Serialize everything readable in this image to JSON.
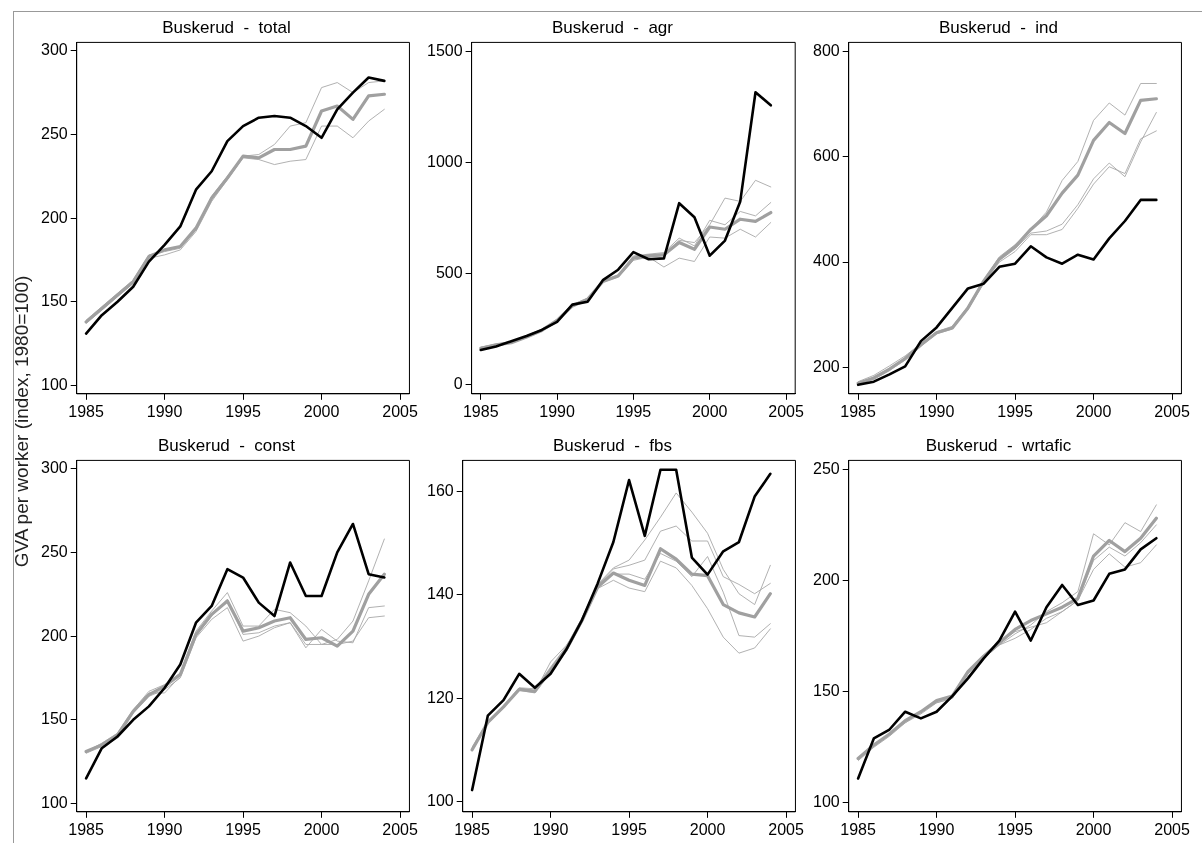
{
  "chart_data": [
    {
      "type": "line",
      "title": "Buskerud  -  total",
      "ylabel": "GVA per worker (index, 1980=100)",
      "x": [
        1985,
        1986,
        1987,
        1988,
        1989,
        1990,
        1991,
        1992,
        1993,
        1994,
        1995,
        1996,
        1997,
        1998,
        1999,
        2000,
        2001,
        2002,
        2003,
        2004
      ],
      "xlim": [
        1984.4,
        2005.6
      ],
      "xticks": [
        1985,
        1990,
        1995,
        2000,
        2005
      ],
      "ylim": [
        95,
        305
      ],
      "yticks": [
        100,
        150,
        200,
        250,
        300
      ],
      "grid": false,
      "legend": false,
      "series": [
        {
          "color": "#000000",
          "values": [
            131,
            142,
            150,
            159,
            174,
            184,
            195,
            217,
            228,
            246,
            255,
            260,
            261,
            260,
            255,
            248,
            265,
            275,
            284,
            282
          ]
        },
        {
          "color": "#a0a0a0",
          "values": [
            138,
            146,
            154,
            162,
            177,
            181,
            183,
            194,
            212,
            224,
            237,
            236,
            241,
            241,
            243,
            264,
            267,
            259,
            273,
            274
          ]
        },
        {
          "color": "#a8a8a8",
          "values": [
            139,
            147,
            155,
            163,
            178,
            180,
            182,
            193,
            213,
            225,
            237,
            238,
            244,
            255,
            257,
            278,
            281,
            275,
            281,
            282
          ]
        },
        {
          "color": "#a8a8a8",
          "values": [
            137,
            145,
            153,
            161,
            176,
            178,
            181,
            192,
            210,
            223,
            236,
            235,
            232,
            234,
            235,
            255,
            255,
            248,
            258,
            265
          ]
        }
      ]
    },
    {
      "type": "line",
      "title": "Buskerud  -  agr",
      "x": [
        1985,
        1986,
        1987,
        1988,
        1989,
        1990,
        1991,
        1992,
        1993,
        1994,
        1995,
        1996,
        1997,
        1998,
        1999,
        2000,
        2001,
        2002,
        2003,
        2004
      ],
      "xlim": [
        1984.4,
        2005.6
      ],
      "xticks": [
        1985,
        1990,
        1995,
        2000,
        2005
      ],
      "ylim": [
        -40,
        1540
      ],
      "yticks": [
        0,
        500,
        1000,
        1500
      ],
      "grid": false,
      "legend": false,
      "series": [
        {
          "color": "#000000",
          "values": [
            157,
            173,
            196,
            220,
            247,
            283,
            361,
            374,
            471,
            518,
            597,
            565,
            569,
            817,
            754,
            581,
            649,
            825,
            1316,
            1257
          ]
        },
        {
          "color": "#a0a0a0",
          "values": [
            165,
            180,
            190,
            215,
            245,
            290,
            355,
            385,
            465,
            490,
            570,
            580,
            585,
            640,
            610,
            710,
            700,
            745,
            735,
            775
          ]
        },
        {
          "color": "#a8a8a8",
          "values": [
            170,
            182,
            195,
            218,
            248,
            295,
            360,
            390,
            470,
            495,
            575,
            585,
            590,
            650,
            640,
            720,
            840,
            825,
            920,
            890
          ]
        },
        {
          "color": "#a8a8a8",
          "values": [
            162,
            178,
            188,
            212,
            242,
            288,
            352,
            382,
            462,
            485,
            560,
            575,
            530,
            570,
            555,
            665,
            660,
            700,
            665,
            730
          ]
        },
        {
          "color": "#a8a8a8",
          "values": [
            168,
            184,
            192,
            217,
            250,
            292,
            358,
            388,
            468,
            492,
            580,
            588,
            595,
            660,
            625,
            740,
            720,
            780,
            760,
            820
          ]
        }
      ]
    },
    {
      "type": "line",
      "title": "Buskerud  -  ind",
      "x": [
        1985,
        1986,
        1987,
        1988,
        1989,
        1990,
        1991,
        1992,
        1993,
        1994,
        1995,
        1996,
        1997,
        1998,
        1999,
        2000,
        2001,
        2002,
        2003,
        2004
      ],
      "xlim": [
        1984.4,
        2005.6
      ],
      "xticks": [
        1985,
        1990,
        1995,
        2000,
        2005
      ],
      "ylim": [
        150,
        817
      ],
      "yticks": [
        200,
        400,
        600,
        800
      ],
      "grid": false,
      "legend": false,
      "series": [
        {
          "color": "#000000",
          "values": [
            167,
            173,
            187,
            202,
            250,
            276,
            313,
            350,
            359,
            391,
            397,
            430,
            409,
            397,
            414,
            405,
            445,
            478,
            518,
            518
          ]
        },
        {
          "color": "#a0a0a0",
          "values": [
            170,
            180,
            197,
            217,
            243,
            266,
            275,
            313,
            364,
            406,
            429,
            462,
            488,
            531,
            565,
            631,
            665,
            644,
            707,
            710
          ]
        },
        {
          "color": "#a8a8a8",
          "values": [
            173,
            185,
            203,
            222,
            245,
            268,
            278,
            316,
            366,
            410,
            433,
            462,
            495,
            555,
            591,
            669,
            702,
            679,
            739,
            739
          ]
        },
        {
          "color": "#a8a8a8",
          "values": [
            168,
            178,
            194,
            214,
            240,
            264,
            273,
            310,
            360,
            400,
            420,
            452,
            452,
            462,
            502,
            548,
            581,
            568,
            634,
            649
          ]
        },
        {
          "color": "#a8a8a8",
          "values": [
            169,
            179,
            196,
            216,
            242,
            265,
            276,
            312,
            362,
            403,
            425,
            455,
            459,
            472,
            509,
            558,
            588,
            562,
            628,
            684
          ]
        }
      ]
    },
    {
      "type": "line",
      "title": "Buskerud  -  const",
      "x": [
        1985,
        1986,
        1987,
        1988,
        1989,
        1990,
        1991,
        1992,
        1993,
        1994,
        1995,
        1996,
        1997,
        1998,
        1999,
        2000,
        2001,
        2002,
        2003,
        2004
      ],
      "xlim": [
        1984.4,
        2005.6
      ],
      "xticks": [
        1985,
        1990,
        1995,
        2000,
        2005
      ],
      "ylim": [
        95,
        305
      ],
      "yticks": [
        100,
        150,
        200,
        250,
        300
      ],
      "grid": false,
      "legend": false,
      "series": [
        {
          "color": "#000000",
          "values": [
            115,
            133,
            140,
            150,
            158,
            169,
            183,
            208,
            218,
            240,
            235,
            220,
            212,
            244,
            224,
            224,
            250,
            267,
            237,
            235
          ]
        },
        {
          "color": "#a0a0a0",
          "values": [
            131,
            135,
            141,
            155,
            165,
            170,
            177,
            201,
            213,
            221,
            203,
            205,
            209,
            211,
            198,
            199,
            194,
            203,
            225,
            237
          ]
        },
        {
          "color": "#a8a8a8",
          "values": [
            131,
            136,
            142,
            156,
            167,
            171,
            178,
            203,
            215,
            226,
            206,
            206,
            216,
            214,
            206,
            195,
            198,
            209,
            233,
            258
          ]
        },
        {
          "color": "#a8a8a8",
          "values": [
            130,
            134,
            139,
            154,
            164,
            168,
            175,
            199,
            210,
            217,
            197,
            200,
            205,
            208,
            193,
            204,
            197,
            196,
            217,
            218
          ]
        },
        {
          "color": "#a8a8a8",
          "values": [
            131,
            135,
            140,
            155,
            166,
            166,
            176,
            200,
            212,
            222,
            201,
            202,
            206,
            208,
            195,
            195,
            195,
            197,
            211,
            212
          ]
        }
      ]
    },
    {
      "type": "line",
      "title": "Buskerud  -  fbs",
      "x": [
        1985,
        1986,
        1987,
        1988,
        1989,
        1990,
        1991,
        1992,
        1993,
        1994,
        1995,
        1996,
        1997,
        1998,
        1999,
        2000,
        2001,
        2002,
        2003,
        2004
      ],
      "xlim": [
        1984.4,
        2005.6
      ],
      "xticks": [
        1985,
        1990,
        1995,
        2000,
        2005
      ],
      "ylim": [
        98,
        166
      ],
      "yticks": [
        100,
        120,
        140,
        160
      ],
      "grid": false,
      "legend": false,
      "series": [
        {
          "color": "#000000",
          "values": [
            102.2,
            116.6,
            119.6,
            124.7,
            122.0,
            124.7,
            129.4,
            135.1,
            142.2,
            150.2,
            162.2,
            151.4,
            164.2,
            164.2,
            147.2,
            143.9,
            148.4,
            150.2,
            159.0,
            163.4
          ]
        },
        {
          "color": "#a0a0a0",
          "values": [
            110.0,
            115.3,
            118.3,
            121.7,
            121.3,
            125.4,
            129.4,
            135.0,
            141.5,
            144.2,
            142.8,
            141.8,
            148.9,
            146.9,
            144.0,
            143.7,
            138.1,
            136.5,
            135.7,
            140.2
          ]
        },
        {
          "color": "#a8a8a8",
          "values": [
            110.5,
            115.5,
            118.5,
            122.0,
            121.8,
            126.0,
            130.0,
            135.5,
            142.0,
            145.2,
            146.7,
            150.6,
            155.0,
            159.7,
            156.0,
            151.9,
            144.9,
            140.2,
            138.1,
            145.7
          ]
        },
        {
          "color": "#a8a8a8",
          "values": [
            110.2,
            115.4,
            118.4,
            121.9,
            121.5,
            125.8,
            129.8,
            135.2,
            141.8,
            145.0,
            145.7,
            146.7,
            152.3,
            153.3,
            150.4,
            150.4,
            143.5,
            142.0,
            140.2,
            142.2
          ]
        },
        {
          "color": "#a8a8a8",
          "values": [
            109.8,
            115.1,
            118.1,
            121.5,
            121.0,
            125.0,
            129.0,
            134.6,
            141.2,
            142.8,
            141.3,
            140.6,
            146.5,
            145.2,
            141.8,
            137.3,
            131.8,
            128.7,
            129.7,
            133.4
          ]
        },
        {
          "color": "#a8a8a8",
          "values": [
            110.0,
            115.2,
            118.2,
            121.6,
            121.2,
            127.0,
            130.2,
            134.8,
            141.4,
            144.0,
            144.0,
            143.0,
            148.0,
            146.5,
            143.5,
            147.4,
            140.5,
            132.1,
            131.8,
            134.4
          ]
        }
      ]
    },
    {
      "type": "line",
      "title": "Buskerud  -  wrtafic",
      "x": [
        1985,
        1986,
        1987,
        1988,
        1989,
        1990,
        1991,
        1992,
        1993,
        1994,
        1995,
        1996,
        1997,
        1998,
        1999,
        2000,
        2001,
        2002,
        2003,
        2004
      ],
      "xlim": [
        1984.4,
        2005.6
      ],
      "xticks": [
        1985,
        1990,
        1995,
        2000,
        2005
      ],
      "ylim": [
        96,
        254
      ],
      "yticks": [
        100,
        150,
        200,
        250
      ],
      "grid": false,
      "legend": false,
      "series": [
        {
          "color": "#000000",
          "values": [
            111,
            129,
            133,
            141,
            138,
            141,
            148,
            156,
            165,
            173,
            186,
            173,
            188,
            198,
            189,
            191,
            203,
            205,
            214,
            219
          ]
        },
        {
          "color": "#a0a0a0",
          "values": [
            120,
            126,
            131,
            137,
            141,
            146,
            148,
            159,
            166,
            172,
            178,
            182,
            185,
            188,
            192,
            211,
            218,
            213,
            219,
            228
          ]
        },
        {
          "color": "#a8a8a8",
          "values": [
            120,
            126,
            131,
            136,
            141,
            145,
            147,
            158,
            165,
            171,
            176,
            180,
            186,
            190,
            195,
            221,
            216,
            226,
            222,
            234
          ]
        },
        {
          "color": "#a8a8a8",
          "values": [
            119,
            125,
            130,
            136,
            140,
            145,
            147,
            157,
            165,
            171,
            174,
            178,
            183,
            186,
            191,
            205,
            212,
            206,
            208,
            216
          ]
        },
        {
          "color": "#a8a8a8",
          "values": [
            120,
            126,
            131,
            137,
            141,
            146,
            148,
            156,
            166,
            172,
            177,
            179,
            181,
            186,
            191,
            209,
            215,
            211,
            217,
            225
          ]
        }
      ]
    }
  ]
}
